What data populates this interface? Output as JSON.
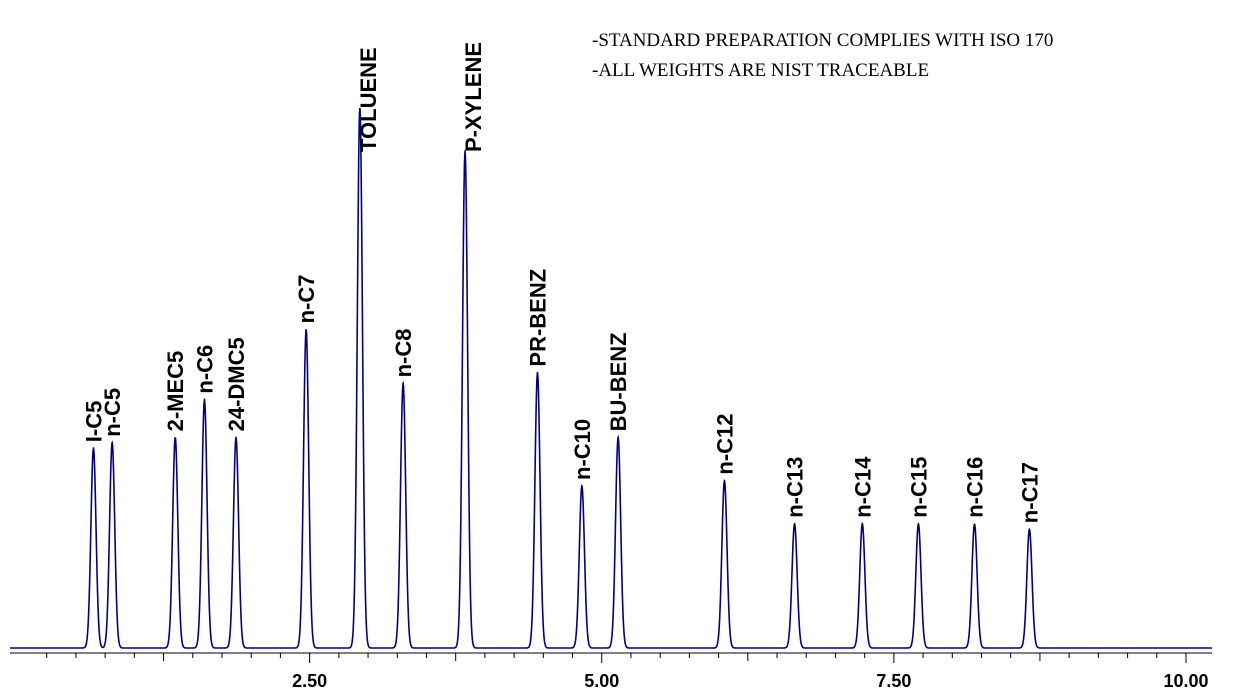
{
  "chart_data": {
    "type": "line",
    "title": "",
    "xlabel": "",
    "ylabel": "",
    "xlim": [
      0,
      10.0
    ],
    "x_ticks": [
      "2.50",
      "5.00",
      "7.50",
      "10.00"
    ],
    "x_tick_values": [
      2.5,
      5.0,
      7.5,
      10.0
    ],
    "grid": false,
    "line_color": "#00008b",
    "notes": [
      "-STANDARD PREPARATION COMPLIES WITH ISO 170",
      "-ALL WEIGHTS ARE NIST TRACEABLE"
    ],
    "peaks": [
      {
        "label": "I-C5",
        "rt": 0.65,
        "height": 0.37
      },
      {
        "label": "n-C5",
        "rt": 0.81,
        "height": 0.38
      },
      {
        "label": "2-MEC5",
        "rt": 1.35,
        "height": 0.39
      },
      {
        "label": "n-C6",
        "rt": 1.6,
        "height": 0.46
      },
      {
        "label": "24-DMC5",
        "rt": 1.87,
        "height": 0.39
      },
      {
        "label": "n-C7",
        "rt": 2.47,
        "height": 0.59
      },
      {
        "label": "TOLUENE",
        "rt": 2.93,
        "height": 1.0
      },
      {
        "label": "n-C8",
        "rt": 3.3,
        "height": 0.49
      },
      {
        "label": "P-XYLENE",
        "rt": 3.83,
        "height": 0.92
      },
      {
        "label": "PR-BENZ",
        "rt": 4.45,
        "height": 0.51
      },
      {
        "label": "n-C10",
        "rt": 4.83,
        "height": 0.3
      },
      {
        "label": "BU-BENZ",
        "rt": 5.14,
        "height": 0.39
      },
      {
        "label": "n-C12",
        "rt": 6.05,
        "height": 0.31
      },
      {
        "label": "n-C13",
        "rt": 6.65,
        "height": 0.23
      },
      {
        "label": "n-C14",
        "rt": 7.23,
        "height": 0.23
      },
      {
        "label": "n-C15",
        "rt": 7.71,
        "height": 0.23
      },
      {
        "label": "n-C16",
        "rt": 8.19,
        "height": 0.23
      },
      {
        "label": "n-C17",
        "rt": 8.66,
        "height": 0.22
      }
    ]
  }
}
